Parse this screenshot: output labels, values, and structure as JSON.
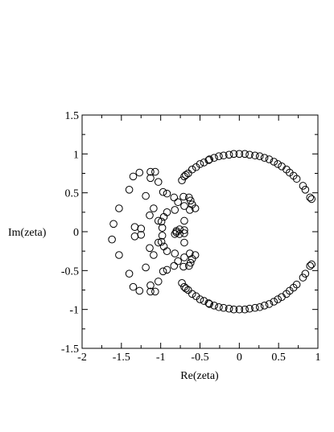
{
  "chart_data": {
    "type": "scatter",
    "title": "",
    "xlabel": "Re(zeta)",
    "ylabel": "Im(zeta)",
    "xlim": [
      -2,
      1
    ],
    "ylim": [
      -1.5,
      1.5
    ],
    "x_ticks": [
      -2,
      -1.5,
      -1,
      -0.5,
      0,
      0.5,
      1
    ],
    "x_tick_labels": [
      "-2",
      "-1.5",
      "-1",
      "-0.5",
      "0",
      "0.5",
      "1"
    ],
    "y_ticks": [
      -1.5,
      -1,
      -0.5,
      0,
      0.5,
      1,
      1.5
    ],
    "y_tick_labels": [
      "-1.5",
      "-1",
      "-0.5",
      "0",
      "0.5",
      "1",
      "1.5"
    ],
    "grid": false,
    "marker": "open-circle",
    "marker_color": "#000000",
    "series": [
      {
        "points": [
          [
            0.0,
            1.0
          ],
          [
            0.07,
            1.0
          ],
          [
            0.13,
            0.99
          ],
          [
            0.2,
            0.98
          ],
          [
            0.26,
            0.97
          ],
          [
            0.32,
            0.95
          ],
          [
            0.38,
            0.93
          ],
          [
            0.44,
            0.9
          ],
          [
            0.49,
            0.87
          ],
          [
            0.54,
            0.84
          ],
          [
            0.6,
            0.8
          ],
          [
            0.64,
            0.76
          ],
          [
            0.69,
            0.72
          ],
          [
            0.73,
            0.68
          ],
          [
            0.81,
            0.59
          ],
          [
            0.84,
            0.54
          ],
          [
            0.9,
            0.44
          ],
          [
            0.92,
            0.42
          ],
          [
            -0.07,
            1.0
          ],
          [
            -0.13,
            0.99
          ],
          [
            -0.2,
            0.98
          ],
          [
            -0.26,
            0.97
          ],
          [
            -0.32,
            0.95
          ],
          [
            -0.38,
            0.93
          ],
          [
            -0.39,
            0.92
          ],
          [
            -0.45,
            0.89
          ],
          [
            -0.5,
            0.87
          ],
          [
            -0.55,
            0.83
          ],
          [
            -0.6,
            0.8
          ],
          [
            -0.65,
            0.75
          ],
          [
            -0.68,
            0.73
          ],
          [
            -0.7,
            0.71
          ],
          [
            -0.73,
            0.66
          ],
          [
            0.0,
            -1.0
          ],
          [
            0.07,
            -1.0
          ],
          [
            0.13,
            -0.99
          ],
          [
            0.2,
            -0.98
          ],
          [
            0.26,
            -0.97
          ],
          [
            0.32,
            -0.95
          ],
          [
            0.38,
            -0.93
          ],
          [
            0.44,
            -0.9
          ],
          [
            0.49,
            -0.87
          ],
          [
            0.54,
            -0.84
          ],
          [
            0.6,
            -0.8
          ],
          [
            0.64,
            -0.76
          ],
          [
            0.69,
            -0.72
          ],
          [
            0.73,
            -0.68
          ],
          [
            0.81,
            -0.59
          ],
          [
            0.84,
            -0.54
          ],
          [
            0.9,
            -0.44
          ],
          [
            0.92,
            -0.42
          ],
          [
            -0.07,
            -1.0
          ],
          [
            -0.13,
            -0.99
          ],
          [
            -0.2,
            -0.98
          ],
          [
            -0.26,
            -0.97
          ],
          [
            -0.32,
            -0.95
          ],
          [
            -0.38,
            -0.93
          ],
          [
            -0.39,
            -0.92
          ],
          [
            -0.45,
            -0.89
          ],
          [
            -0.5,
            -0.87
          ],
          [
            -0.55,
            -0.83
          ],
          [
            -0.6,
            -0.8
          ],
          [
            -0.65,
            -0.75
          ],
          [
            -0.68,
            -0.73
          ],
          [
            -0.7,
            -0.71
          ],
          [
            -0.73,
            -0.66
          ],
          [
            -1.27,
            0.76
          ],
          [
            -1.13,
            0.77
          ],
          [
            -1.07,
            0.77
          ],
          [
            -1.35,
            0.71
          ],
          [
            -1.13,
            0.69
          ],
          [
            -1.03,
            0.64
          ],
          [
            -1.4,
            0.54
          ],
          [
            -1.19,
            0.46
          ],
          [
            -0.97,
            0.51
          ],
          [
            -0.92,
            0.49
          ],
          [
            -0.83,
            0.44
          ],
          [
            -0.71,
            0.45
          ],
          [
            -0.64,
            0.44
          ],
          [
            -0.62,
            0.4
          ],
          [
            -0.6,
            0.35
          ],
          [
            -0.56,
            0.3
          ],
          [
            -1.53,
            0.3
          ],
          [
            -1.09,
            0.3
          ],
          [
            -0.78,
            0.38
          ],
          [
            -0.7,
            0.33
          ],
          [
            -0.63,
            0.28
          ],
          [
            -1.14,
            0.21
          ],
          [
            -0.96,
            0.19
          ],
          [
            -0.92,
            0.25
          ],
          [
            -0.82,
            0.28
          ],
          [
            -1.03,
            0.14
          ],
          [
            -0.99,
            0.13
          ],
          [
            -0.7,
            0.14
          ],
          [
            -1.6,
            0.1
          ],
          [
            -1.33,
            0.06
          ],
          [
            -1.25,
            0.04
          ],
          [
            -0.98,
            0.05
          ],
          [
            -0.8,
            0.01
          ],
          [
            -0.76,
            0.03
          ],
          [
            -0.7,
            0.02
          ],
          [
            -0.82,
            -0.03
          ],
          [
            -1.62,
            -0.1
          ],
          [
            -1.33,
            -0.06
          ],
          [
            -1.25,
            -0.04
          ],
          [
            -0.98,
            -0.05
          ],
          [
            -0.8,
            -0.01
          ],
          [
            -0.7,
            -0.02
          ],
          [
            -0.76,
            -0.03
          ],
          [
            -1.03,
            -0.14
          ],
          [
            -0.99,
            -0.13
          ],
          [
            -0.7,
            -0.14
          ],
          [
            -1.14,
            -0.21
          ],
          [
            -0.96,
            -0.19
          ],
          [
            -0.92,
            -0.25
          ],
          [
            -0.82,
            -0.28
          ],
          [
            -1.53,
            -0.3
          ],
          [
            -1.09,
            -0.3
          ],
          [
            -0.78,
            -0.38
          ],
          [
            -0.7,
            -0.33
          ],
          [
            -0.63,
            -0.28
          ],
          [
            -0.56,
            -0.3
          ],
          [
            -0.6,
            -0.35
          ],
          [
            -1.19,
            -0.46
          ],
          [
            -0.97,
            -0.51
          ],
          [
            -0.92,
            -0.49
          ],
          [
            -0.83,
            -0.44
          ],
          [
            -0.71,
            -0.45
          ],
          [
            -0.64,
            -0.44
          ],
          [
            -0.62,
            -0.4
          ],
          [
            -1.4,
            -0.54
          ],
          [
            -1.03,
            -0.64
          ],
          [
            -1.13,
            -0.69
          ],
          [
            -1.35,
            -0.71
          ],
          [
            -1.27,
            -0.76
          ],
          [
            -1.13,
            -0.77
          ],
          [
            -1.07,
            -0.77
          ]
        ]
      }
    ]
  }
}
